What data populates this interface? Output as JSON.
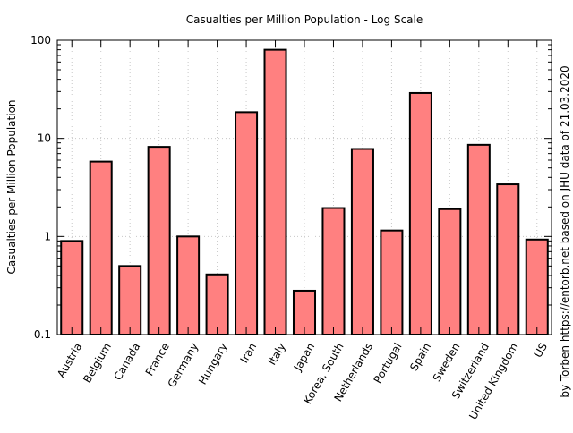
{
  "chart_data": {
    "type": "bar",
    "title": "Casualties per Million Population - Log Scale",
    "xlabel": "",
    "ylabel": "Casualties per Million Population",
    "yscale": "log",
    "ylim": [
      0.1,
      100
    ],
    "yticks": [
      "0.1",
      "1",
      "10",
      "100"
    ],
    "grid": true,
    "bar_color": "#ff8080",
    "bar_edge_color": "#000000",
    "side_note": "by Torben https://entorb.net based on JHU data of 21.03.2020",
    "categories": [
      "Austria",
      "Belgium",
      "Canada",
      "France",
      "Germany",
      "Hungary",
      "Iran",
      "Italy",
      "Japan",
      "Korea, South",
      "Netherlands",
      "Portugal",
      "Spain",
      "Sweden",
      "Switzerland",
      "United Kingdom",
      "US"
    ],
    "values": [
      0.9,
      5.8,
      0.5,
      8.2,
      1.0,
      0.41,
      18.5,
      80,
      0.28,
      1.95,
      7.8,
      1.15,
      29,
      1.9,
      8.6,
      3.4,
      0.93
    ]
  }
}
